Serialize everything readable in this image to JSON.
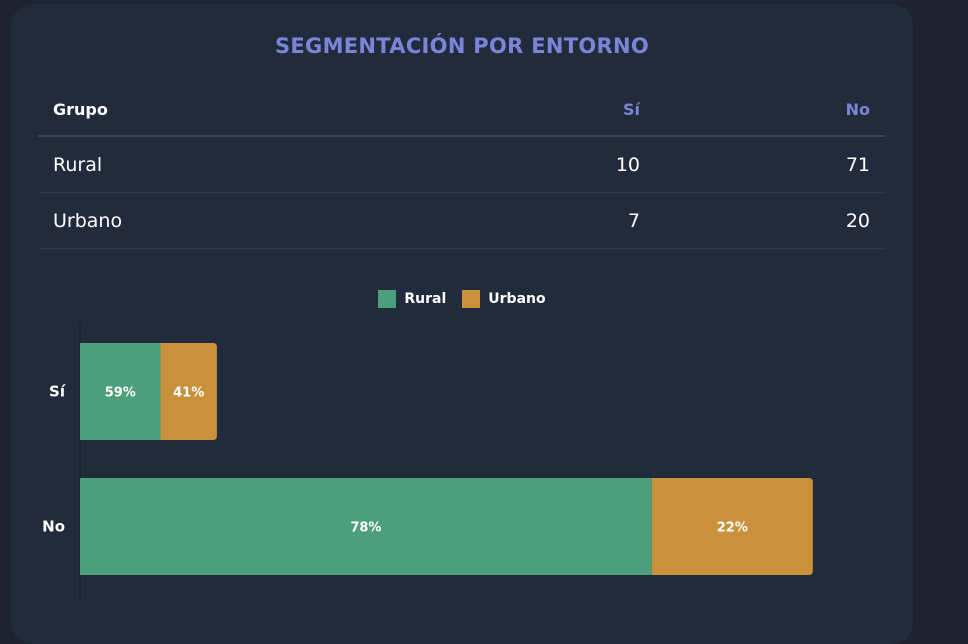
{
  "title": "SEGMENTACIÓN POR ENTORNO",
  "table": {
    "headers": [
      "Grupo",
      "Sí",
      "No"
    ],
    "rows": [
      {
        "grupo": "Rural",
        "si": "10",
        "no": "71"
      },
      {
        "grupo": "Urbano",
        "si": "7",
        "no": "20"
      }
    ]
  },
  "chart_data": {
    "type": "bar",
    "orientation": "horizontal",
    "stacked": true,
    "categories": [
      "Sí",
      "No"
    ],
    "series": [
      {
        "name": "Rural",
        "values": [
          10,
          71
        ],
        "labels": [
          "59%",
          "78%"
        ],
        "color": "#4c9f7b"
      },
      {
        "name": "Urbano",
        "values": [
          7,
          20
        ],
        "labels": [
          "41%",
          "22%"
        ],
        "color": "#c9913c"
      }
    ],
    "xlim": [
      0,
      94
    ],
    "legend": "top-center",
    "grid": false
  },
  "colors": {
    "background": "#1d2331",
    "card": "#222b3c",
    "accent": "#7b85d8",
    "rural": "#4c9f7b",
    "urbano": "#c9913c"
  }
}
